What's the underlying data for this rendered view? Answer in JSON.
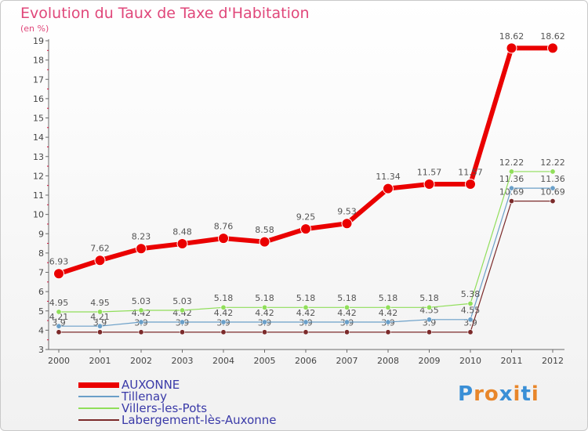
{
  "title": "Evolution du Taux de Taxe d'Habitation",
  "subtitle": "(en %)",
  "logo": {
    "letters": [
      "P",
      "r",
      "o",
      "x",
      "i",
      "t",
      "i"
    ],
    "colors": [
      "#3a8fd6",
      "#e8862a",
      "#e8862a",
      "#3a8fd6",
      "#e8862a",
      "#3a8fd6",
      "#e8862a"
    ]
  },
  "chart_data": {
    "type": "line",
    "title": "Evolution du Taux de Taxe d'Habitation",
    "ylabel": "(en %)",
    "xlabel": "",
    "ylim": [
      3,
      19
    ],
    "yticks": [
      "3",
      "4",
      "5",
      "6",
      "7",
      "8",
      "9",
      "10",
      "11",
      "12",
      "13",
      "14",
      "15",
      "16",
      "17",
      "18",
      "19"
    ],
    "categories": [
      "2000",
      "2001",
      "2002",
      "2003",
      "2004",
      "2005",
      "2006",
      "2007",
      "2008",
      "2009",
      "2010",
      "2011",
      "2012"
    ],
    "grid": false,
    "legend": "bottom-left",
    "series": [
      {
        "name": "Labergement-lès-Auxonne",
        "color": "#7b2a2a",
        "width": 1.2,
        "radius": 3.2,
        "values": [
          3.9,
          3.9,
          3.9,
          3.9,
          3.9,
          3.9,
          3.9,
          3.9,
          3.9,
          3.9,
          3.9,
          10.69,
          10.69
        ],
        "labels": [
          "3.9",
          "3.9",
          "3.9",
          "3.9",
          "3.9",
          "3.9",
          "3.9",
          "3.9",
          "3.9",
          "3.9",
          "3.9",
          "10.69",
          "10.69"
        ]
      },
      {
        "name": "Tillenay",
        "color": "#6a9fc8",
        "width": 1.2,
        "radius": 3.2,
        "values": [
          4.21,
          4.21,
          4.42,
          4.42,
          4.42,
          4.42,
          4.42,
          4.42,
          4.42,
          4.55,
          4.55,
          11.36,
          11.36
        ],
        "labels": [
          "4.21",
          "4.21",
          "4.42",
          "4.42",
          "4.42",
          "4.42",
          "4.42",
          "4.42",
          "4.42",
          "4.55",
          "4.55",
          "11.36",
          "11.36"
        ]
      },
      {
        "name": "Villers-les-Pots",
        "color": "#90de5a",
        "width": 1.2,
        "radius": 3.2,
        "values": [
          4.95,
          4.95,
          5.03,
          5.03,
          5.18,
          5.18,
          5.18,
          5.18,
          5.18,
          5.18,
          5.38,
          12.22,
          12.22
        ],
        "labels": [
          "4.95",
          "4.95",
          "5.03",
          "5.03",
          "5.18",
          "5.18",
          "5.18",
          "5.18",
          "5.18",
          "5.18",
          "5.38",
          "12.22",
          "12.22"
        ]
      },
      {
        "name": "AUXONNE",
        "color": "#ea0000",
        "width": 6,
        "radius": 6.5,
        "values": [
          6.93,
          7.62,
          8.23,
          8.48,
          8.76,
          8.58,
          9.25,
          9.53,
          11.34,
          11.57,
          11.57,
          18.62,
          18.62
        ],
        "labels": [
          "6.93",
          "7.62",
          "8.23",
          "8.48",
          "8.76",
          "8.58",
          "9.25",
          "9.53",
          "11.34",
          "11.57",
          "11.57",
          "18.62",
          "18.62"
        ]
      }
    ],
    "legend_entries": [
      {
        "name": "AUXONNE",
        "color": "#ea0000",
        "width": 7
      },
      {
        "name": "Tillenay",
        "color": "#6a9fc8",
        "width": 2
      },
      {
        "name": "Villers-les-Pots",
        "color": "#90de5a",
        "width": 2
      },
      {
        "name": "Labergement-lès-Auxonne",
        "color": "#7b2a2a",
        "width": 2
      }
    ]
  }
}
